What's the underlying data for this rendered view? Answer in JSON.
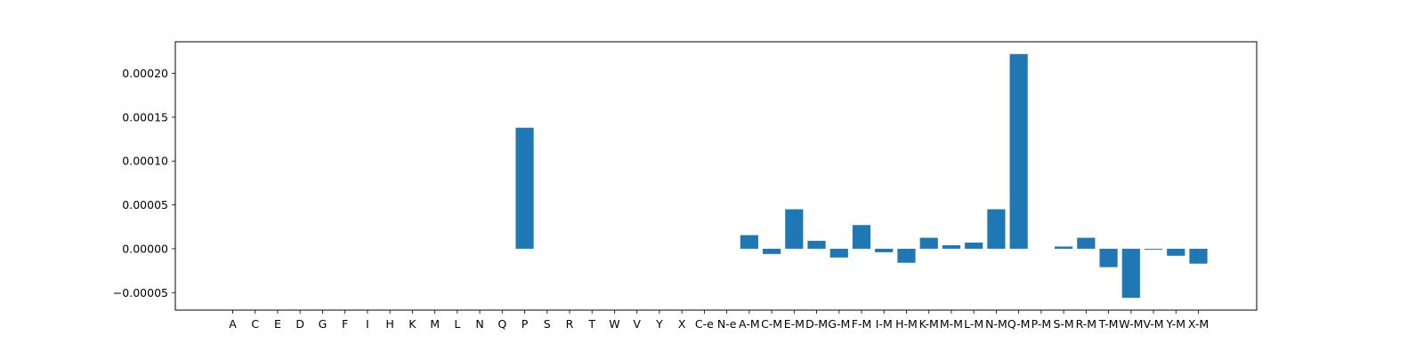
{
  "chart_data": {
    "type": "bar",
    "categories": [
      "A",
      "C",
      "E",
      "D",
      "G",
      "F",
      "I",
      "H",
      "K",
      "M",
      "L",
      "N",
      "Q",
      "P",
      "S",
      "R",
      "T",
      "W",
      "V",
      "Y",
      "X",
      "C-e",
      "N-e",
      "A-M",
      "C-M",
      "E-M",
      "D-M",
      "G-M",
      "F-M",
      "I-M",
      "H-M",
      "K-M",
      "M-M",
      "L-M",
      "N-M",
      "Q-M",
      "P-M",
      "S-M",
      "R-M",
      "T-M",
      "W-M",
      "V-M",
      "Y-M",
      "X-M"
    ],
    "values": [
      0,
      0,
      0,
      0,
      0,
      0,
      0,
      0,
      0,
      0,
      0,
      0,
      0,
      0.000138,
      0,
      0,
      0,
      0,
      0,
      0,
      0,
      0,
      0,
      1.55e-05,
      -6e-06,
      4.5e-05,
      9e-06,
      -1e-05,
      2.7e-05,
      -4e-06,
      -1.6e-05,
      1.25e-05,
      4e-06,
      7e-06,
      4.5e-05,
      0.000222,
      0,
      2.5e-06,
      1.25e-05,
      -2.1e-05,
      -5.6e-05,
      -1e-06,
      -8e-06,
      -1.7e-05
    ],
    "yticks": [
      "−0.00005",
      "0.00000",
      "0.00005",
      "0.00010",
      "0.00015",
      "0.00020"
    ],
    "ytick_values": [
      -5e-05,
      0,
      5e-05,
      0.0001,
      0.00015,
      0.0002
    ],
    "ylim": [
      -7e-05,
      0.000236
    ],
    "title": "",
    "xlabel": "",
    "ylabel": "",
    "grid": false,
    "bar_color": "#1f77b4"
  }
}
